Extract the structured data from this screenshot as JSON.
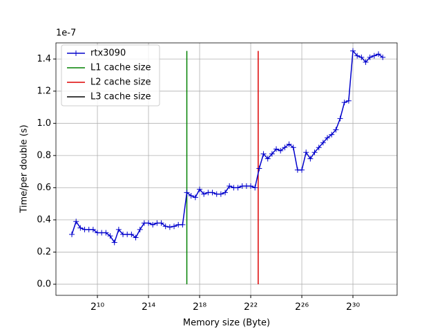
{
  "chart_data": {
    "type": "line",
    "xlabel": "Memory size (Byte)",
    "ylabel": "Time/per double (s)",
    "y_offset_text": "1e-7",
    "xscale": "log2",
    "grid": true,
    "legend": "upper left",
    "xlim": [
      108,
      11800000000
    ],
    "ylim": [
      -0.069,
      1.5
    ],
    "xticks": [
      {
        "value": 1024,
        "label": "2¹⁰"
      },
      {
        "value": 16384,
        "label": "2¹⁴"
      },
      {
        "value": 262144,
        "label": "2¹⁸"
      },
      {
        "value": 4194304,
        "label": "2²²"
      },
      {
        "value": 67108864,
        "label": "2²⁶"
      },
      {
        "value": 1073741824,
        "label": "2³⁰"
      }
    ],
    "yticks": [
      {
        "value": 0,
        "label": "0.0"
      },
      {
        "value": 0.2,
        "label": "0.2"
      },
      {
        "value": 0.4,
        "label": "0.4"
      },
      {
        "value": 0.6,
        "label": "0.6"
      },
      {
        "value": 0.8,
        "label": "0.8"
      },
      {
        "value": 1.0,
        "label": "1.0"
      },
      {
        "value": 1.2,
        "label": "1.2"
      },
      {
        "value": 1.4,
        "label": "1.4"
      }
    ],
    "x": [
      256,
      322.5,
      406.4,
      512,
      645.1,
      812.7,
      1024,
      1290.2,
      1625.5,
      2048,
      2580.3,
      3251.0,
      4096,
      5160.6,
      6502.0,
      8192,
      10321.3,
      13004.0,
      16384,
      20642.5,
      26008.0,
      32768,
      41285,
      52016,
      65536,
      82570,
      104032,
      131072,
      165140,
      208064,
      262144,
      330281,
      416128,
      524288,
      660561,
      832255,
      1048576,
      1321122,
      1664510,
      2097152,
      2642245,
      3329021,
      4194304,
      5284490,
      6658042,
      8388608,
      10568980,
      13316084,
      16777216,
      21137960,
      26632169,
      33554432,
      42275920,
      53264338,
      67108864,
      84551840,
      106528676,
      134217728,
      169103680,
      213057352,
      268435456,
      338207360,
      426114704,
      536870912,
      676414720,
      852229408,
      1073741824,
      1352829440,
      1704458816,
      2147483648,
      2705658880,
      3408917632,
      4294967296,
      5411317760
    ],
    "series": [
      {
        "name": "rtx3090",
        "color": "#0000cc",
        "values": [
          0.31,
          0.39,
          0.35,
          0.34,
          0.34,
          0.34,
          0.32,
          0.32,
          0.32,
          0.3,
          0.26,
          0.34,
          0.31,
          0.31,
          0.31,
          0.29,
          0.34,
          0.38,
          0.38,
          0.37,
          0.38,
          0.38,
          0.36,
          0.355,
          0.36,
          0.37,
          0.37,
          0.57,
          0.55,
          0.54,
          0.59,
          0.56,
          0.57,
          0.57,
          0.56,
          0.56,
          0.57,
          0.61,
          0.6,
          0.6,
          0.61,
          0.61,
          0.61,
          0.6,
          0.72,
          0.81,
          0.78,
          0.81,
          0.84,
          0.83,
          0.85,
          0.87,
          0.85,
          0.71,
          0.71,
          0.82,
          0.78,
          0.82,
          0.85,
          0.88,
          0.91,
          0.93,
          0.96,
          1.03,
          1.13,
          1.14,
          1.45,
          1.42,
          1.41,
          1.38,
          1.41,
          1.42,
          1.43,
          1.41
        ]
      }
    ],
    "vlines": [
      {
        "name": "L1 cache size",
        "color": "green",
        "x": 131072,
        "ymin": 0,
        "ymax": 1.45
      },
      {
        "name": "L2 cache size",
        "color": "#dd0000",
        "x": 6291456,
        "ymin": 0,
        "ymax": 1.45
      },
      {
        "name": "L3 cache size",
        "color": "black",
        "x": null,
        "ymin": 0,
        "ymax": 1.45
      }
    ]
  }
}
